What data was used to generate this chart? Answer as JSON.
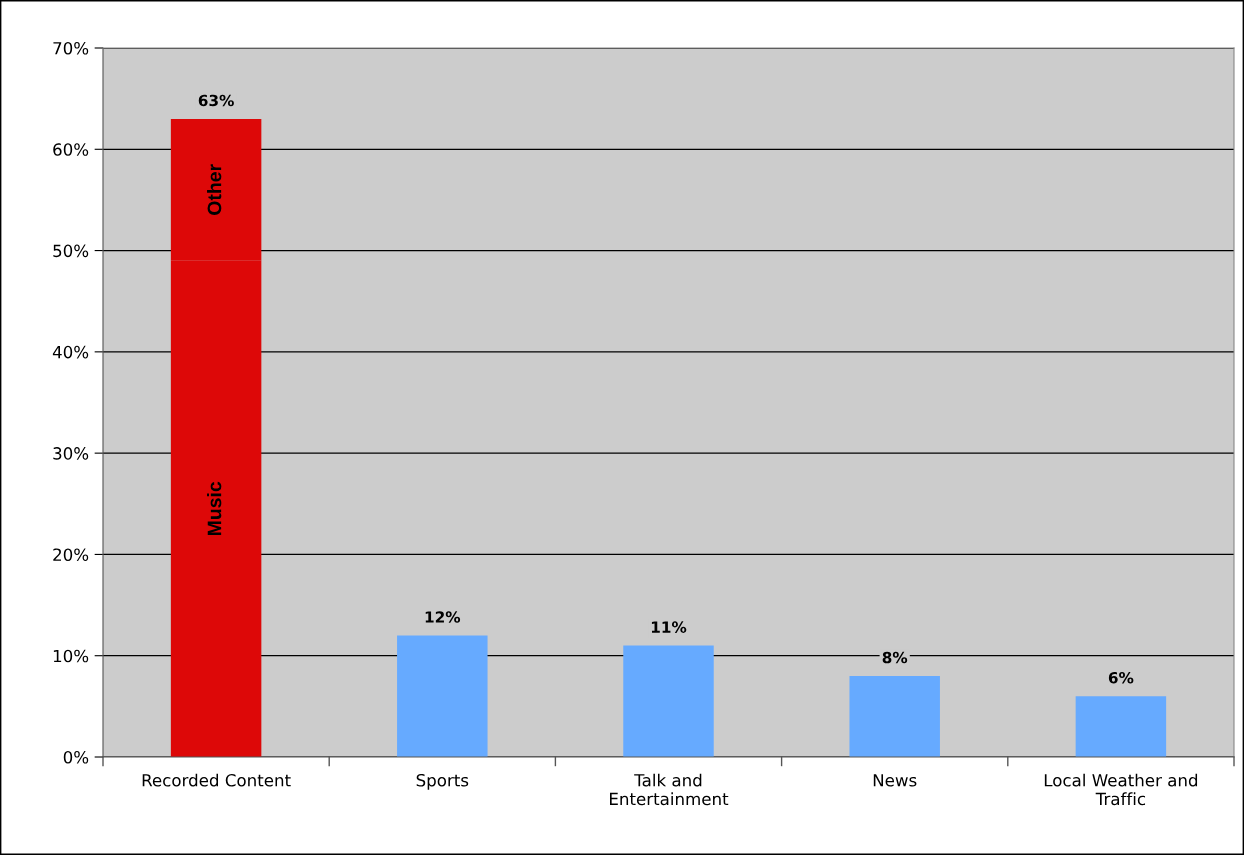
{
  "chart_data": {
    "type": "bar",
    "stacked": true,
    "categories": [
      "Recorded Content",
      "Sports",
      "Talk and\nEntertainment",
      "News",
      "Local Weather and\nTraffic"
    ],
    "series": [
      {
        "name": "Music",
        "color": "#dd0808",
        "values": [
          49,
          null,
          null,
          null,
          null
        ]
      },
      {
        "name": "Other",
        "color": "#dd0808",
        "values": [
          14,
          null,
          null,
          null,
          null
        ]
      },
      {
        "color": "#66aaff",
        "values": [
          null,
          12,
          11,
          8,
          6
        ]
      }
    ],
    "totals": [
      "63%",
      "12%",
      "11%",
      "8%",
      "6%"
    ],
    "ylim": [
      0,
      70
    ],
    "yticks": [
      {
        "value": 0,
        "label": "0%"
      },
      {
        "value": 10,
        "label": "10%"
      },
      {
        "value": 20,
        "label": "20%"
      },
      {
        "value": 30,
        "label": "30%"
      },
      {
        "value": 40,
        "label": "40%"
      },
      {
        "value": 50,
        "label": "50%"
      },
      {
        "value": 60,
        "label": "60%"
      },
      {
        "value": 70,
        "label": "70%"
      }
    ],
    "grid": "y"
  }
}
